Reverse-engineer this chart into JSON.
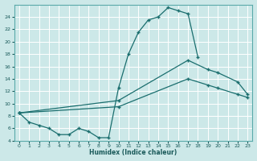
{
  "xlabel": "Humidex (Indice chaleur)",
  "bg_color": "#cce8e8",
  "line_color": "#1a6e6e",
  "ylim": [
    4,
    26
  ],
  "xlim": [
    -0.5,
    23.5
  ],
  "yticks": [
    4,
    6,
    8,
    10,
    12,
    14,
    16,
    18,
    20,
    22,
    24
  ],
  "xticks": [
    0,
    1,
    2,
    3,
    4,
    5,
    6,
    7,
    8,
    9,
    10,
    11,
    12,
    13,
    14,
    15,
    16,
    17,
    18,
    19,
    20,
    21,
    22,
    23
  ],
  "x_main": [
    0,
    1,
    2,
    3,
    4,
    5,
    6,
    7,
    8,
    9,
    10,
    11,
    12,
    13,
    14,
    15,
    16,
    17,
    18
  ],
  "y_main": [
    8.5,
    7.0,
    6.5,
    6.0,
    5.0,
    5.0,
    6.0,
    5.5,
    4.5,
    4.5,
    12.5,
    18.0,
    21.5,
    23.5,
    24.0,
    25.5,
    25.0,
    24.5,
    17.5
  ],
  "x_upper": [
    0,
    10,
    17,
    19,
    20,
    22,
    23
  ],
  "y_upper": [
    8.5,
    10.5,
    17.0,
    15.5,
    15.0,
    13.5,
    11.5
  ],
  "x_lower": [
    0,
    10,
    17,
    19,
    20,
    22,
    23
  ],
  "y_lower": [
    8.5,
    9.5,
    14.0,
    13.0,
    12.5,
    11.5,
    11.0
  ]
}
